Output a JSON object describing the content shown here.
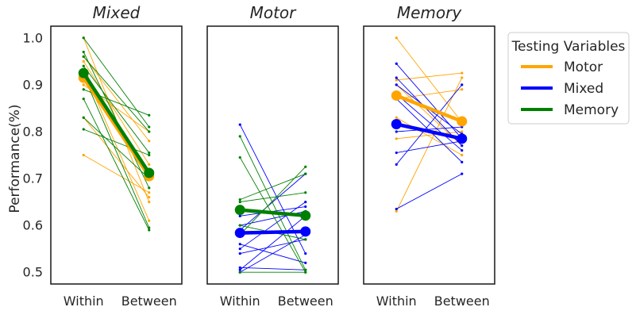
{
  "chart_data": {
    "type": "line",
    "ylabel": "Performance(%)",
    "ylim": [
      0.475,
      1.025
    ],
    "yticks": [
      0.5,
      0.6,
      0.7,
      0.8,
      0.9,
      1.0
    ],
    "ytick_labels": [
      "0.5",
      "0.6",
      "0.7",
      "0.8",
      "0.9",
      "1.0"
    ],
    "categories": [
      "Within",
      "Between"
    ],
    "legend": {
      "title": "Testing Variables",
      "placement": "upper-right outside",
      "entries": [
        {
          "label": "Motor",
          "color": "#FFA500"
        },
        {
          "label": "Mixed",
          "color": "#0000FF"
        },
        {
          "label": "Memory",
          "color": "#008000"
        }
      ]
    },
    "panels": [
      {
        "title": "Mixed",
        "mean_lines": [
          {
            "series": "Motor",
            "values": [
              0.915,
              0.705
            ]
          },
          {
            "series": "Memory",
            "values": [
              0.925,
              0.712
            ]
          }
        ],
        "subject_lines": [
          {
            "series": "Motor",
            "values": [
              1.0,
              0.65
            ]
          },
          {
            "series": "Motor",
            "values": [
              0.96,
              0.78
            ]
          },
          {
            "series": "Motor",
            "values": [
              0.95,
              0.73
            ]
          },
          {
            "series": "Motor",
            "values": [
              0.93,
              0.61
            ]
          },
          {
            "series": "Motor",
            "values": [
              0.9,
              0.8
            ]
          },
          {
            "series": "Motor",
            "values": [
              0.83,
              0.66
            ]
          },
          {
            "series": "Motor",
            "values": [
              0.75,
              0.67
            ]
          },
          {
            "series": "Memory",
            "values": [
              1.0,
              0.81
            ]
          },
          {
            "series": "Memory",
            "values": [
              0.97,
              0.68
            ]
          },
          {
            "series": "Memory",
            "values": [
              0.96,
              0.8
            ]
          },
          {
            "series": "Memory",
            "values": [
              0.94,
              0.755
            ]
          },
          {
            "series": "Memory",
            "values": [
              0.92,
              0.595
            ]
          },
          {
            "series": "Memory",
            "values": [
              0.89,
              0.835
            ]
          },
          {
            "series": "Memory",
            "values": [
              0.87,
              0.59
            ]
          },
          {
            "series": "Memory",
            "values": [
              0.83,
              0.7
            ]
          },
          {
            "series": "Memory",
            "values": [
              0.805,
              0.75
            ]
          }
        ]
      },
      {
        "title": "Motor",
        "mean_lines": [
          {
            "series": "Memory",
            "values": [
              0.633,
              0.621
            ]
          },
          {
            "series": "Mixed",
            "values": [
              0.584,
              0.587
            ]
          }
        ],
        "subject_lines": [
          {
            "series": "Mixed",
            "values": [
              0.815,
              0.54
            ]
          },
          {
            "series": "Mixed",
            "values": [
              0.62,
              0.64
            ]
          },
          {
            "series": "Mixed",
            "values": [
              0.6,
              0.63
            ]
          },
          {
            "series": "Mixed",
            "values": [
              0.59,
              0.71
            ]
          },
          {
            "series": "Mixed",
            "values": [
              0.56,
              0.52
            ]
          },
          {
            "series": "Mixed",
            "values": [
              0.55,
              0.65
            ]
          },
          {
            "series": "Mixed",
            "values": [
              0.54,
              0.57
            ]
          },
          {
            "series": "Mixed",
            "values": [
              0.51,
              0.505
            ]
          },
          {
            "series": "Mixed",
            "values": [
              0.505,
              0.62
            ]
          },
          {
            "series": "Mixed",
            "values": [
              0.5,
              0.58
            ]
          },
          {
            "series": "Memory",
            "values": [
              0.79,
              0.505
            ]
          },
          {
            "series": "Memory",
            "values": [
              0.745,
              0.5
            ]
          },
          {
            "series": "Memory",
            "values": [
              0.655,
              0.71
            ]
          },
          {
            "series": "Memory",
            "values": [
              0.65,
              0.67
            ]
          },
          {
            "series": "Memory",
            "values": [
              0.6,
              0.57
            ]
          },
          {
            "series": "Memory",
            "values": [
              0.58,
              0.725
            ]
          },
          {
            "series": "Memory",
            "values": [
              0.5,
              0.5
            ]
          }
        ]
      },
      {
        "title": "Memory",
        "mean_lines": [
          {
            "series": "Motor",
            "values": [
              0.877,
              0.822
            ]
          },
          {
            "series": "Mixed",
            "values": [
              0.816,
              0.785
            ]
          }
        ],
        "subject_lines": [
          {
            "series": "Motor",
            "values": [
              1.0,
              0.82
            ]
          },
          {
            "series": "Motor",
            "values": [
              0.91,
              0.925
            ]
          },
          {
            "series": "Motor",
            "values": [
              0.9,
              0.77
            ]
          },
          {
            "series": "Motor",
            "values": [
              0.87,
              0.89
            ]
          },
          {
            "series": "Motor",
            "values": [
              0.83,
              0.75
            ]
          },
          {
            "series": "Motor",
            "values": [
              0.785,
              0.8
            ]
          },
          {
            "series": "Motor",
            "values": [
              0.63,
              0.915
            ]
          },
          {
            "series": "Mixed",
            "values": [
              0.945,
              0.785
            ]
          },
          {
            "series": "Mixed",
            "values": [
              0.915,
              0.77
            ]
          },
          {
            "series": "Mixed",
            "values": [
              0.9,
              0.795
            ]
          },
          {
            "series": "Mixed",
            "values": [
              0.88,
              0.76
            ]
          },
          {
            "series": "Mixed",
            "values": [
              0.87,
              0.735
            ]
          },
          {
            "series": "Mixed",
            "values": [
              0.8,
              0.81
            ]
          },
          {
            "series": "Mixed",
            "values": [
              0.755,
              0.78
            ]
          },
          {
            "series": "Mixed",
            "values": [
              0.73,
              0.9
            ]
          },
          {
            "series": "Mixed",
            "values": [
              0.635,
              0.71
            ]
          }
        ]
      }
    ]
  }
}
